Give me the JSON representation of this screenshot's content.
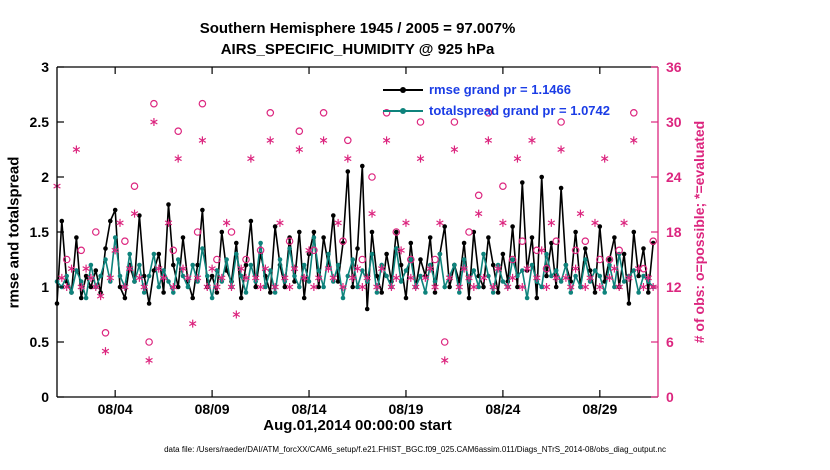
{
  "figure": {
    "title_line1": "Southern Hemisphere 1945 / 2005 = 97.007%",
    "title_line2": "AIRS_SPECIFIC_HUMIDITY @ 925 hPa",
    "xlabel": "Aug.01,2014 00:00:00 start",
    "ylabel_left": "rmse and totalspread",
    "ylabel_right": "# of obs: o=possible; *=evaluated",
    "footer": "data file: /Users/raeder/DAI/ATM_forcXX/CAM6_setup/f.e21.FHIST_BGC.f09_025.CAM6assim.011/Diags_NTrS_2014-08/obs_diag_output.nc",
    "legend": [
      {
        "label": "rmse grand pr = 1.1466",
        "color": "#000000"
      },
      {
        "label": "totalspread grand pr = 1.0742",
        "color": "#0e837c"
      }
    ]
  },
  "colors": {
    "rmse": "#000000",
    "totalspread": "#0e837c",
    "obs": "#dc267f",
    "legend_text": "#1b3de6",
    "axis": "#000000"
  },
  "chart_data": {
    "type": "line",
    "title": "Southern Hemisphere 1945 / 2005 = 97.007%",
    "subtitle": "AIRS_SPECIFIC_HUMIDITY @ 925 hPa",
    "xlabel": "Aug.01,2014 00:00:00 start",
    "ylabel": "rmse and totalspread",
    "y2label": "# of obs: o=possible; *=evaluated",
    "grid": false,
    "legend_position": "top-center-inside",
    "x_start_day": 1,
    "x_step_days": 0.25,
    "xlim": [
      1,
      32
    ],
    "ylim": [
      0,
      3
    ],
    "y2lim": [
      0,
      36
    ],
    "yticks": [
      0,
      0.5,
      1,
      1.5,
      2,
      2.5,
      3
    ],
    "ytick_labels": [
      "0",
      "0.5",
      "1",
      "1.5",
      "2",
      "2.5",
      "3"
    ],
    "y2ticks": [
      0,
      6,
      12,
      18,
      24,
      30,
      36
    ],
    "y2tick_labels": [
      "0",
      "6",
      "12",
      "18",
      "24",
      "30",
      "36"
    ],
    "xticks": {
      "days": [
        4,
        9,
        14,
        19,
        24,
        29
      ],
      "labels": [
        "08/04",
        "08/09",
        "08/14",
        "08/19",
        "08/24",
        "08/29"
      ]
    },
    "series": [
      {
        "name": "rmse",
        "axis": "left",
        "marker": "dot",
        "grand_pr": 1.1466,
        "values": [
          0.85,
          1.6,
          1.05,
          0.95,
          1.45,
          0.9,
          1.1,
          1.0,
          1.15,
          0.95,
          1.35,
          1.6,
          1.7,
          1.0,
          0.9,
          1.2,
          1.05,
          1.65,
          1.1,
          0.85,
          1.15,
          1.3,
          0.95,
          1.75,
          1.2,
          1.0,
          1.45,
          1.05,
          0.9,
          1.2,
          1.7,
          1.0,
          1.1,
          0.95,
          1.5,
          1.15,
          1.05,
          1.4,
          0.9,
          1.2,
          1.6,
          1.0,
          1.3,
          1.1,
          0.95,
          1.55,
          1.2,
          1.0,
          1.45,
          1.05,
          1.5,
          0.9,
          1.3,
          1.5,
          1.0,
          1.45,
          1.2,
          1.65,
          1.05,
          1.4,
          2.05,
          1.0,
          1.35,
          2.1,
          0.8,
          1.5,
          1.1,
          0.95,
          1.3,
          1.05,
          1.5,
          1.2,
          0.9,
          1.4,
          1.0,
          1.25,
          1.1,
          1.45,
          0.95,
          1.3,
          1.55,
          1.0,
          1.2,
          1.05,
          1.4,
          0.9,
          1.5,
          1.1,
          1.0,
          1.45,
          1.2,
          0.95,
          1.3,
          1.05,
          1.55,
          1.0,
          1.95,
          1.15,
          1.45,
          0.9,
          2.0,
          1.1,
          1.4,
          1.0,
          1.9,
          1.2,
          1.05,
          1.5,
          1.0,
          1.35,
          1.15,
          0.95,
          1.55,
          1.05,
          1.25,
          1.45,
          1.0,
          1.3,
          0.85,
          1.5,
          1.1,
          1.35,
          0.95,
          1.4
        ]
      },
      {
        "name": "totalspread",
        "axis": "left",
        "marker": "dot",
        "grand_pr": 1.0742,
        "values": [
          1.05,
          1.0,
          1.1,
          0.95,
          1.15,
          1.05,
          0.9,
          1.2,
          1.0,
          1.1,
          1.25,
          1.05,
          1.45,
          1.1,
          1.0,
          1.3,
          1.05,
          1.2,
          0.95,
          1.1,
          1.3,
          1.0,
          1.15,
          1.05,
          0.95,
          1.25,
          1.1,
          1.0,
          1.2,
          1.05,
          1.35,
          1.1,
          0.9,
          1.15,
          1.05,
          1.25,
          1.0,
          1.3,
          1.1,
          0.95,
          1.2,
          1.05,
          1.4,
          1.0,
          1.15,
          0.95,
          1.25,
          1.05,
          1.35,
          1.1,
          1.0,
          1.2,
          1.05,
          1.45,
          1.15,
          1.0,
          1.3,
          1.05,
          1.2,
          0.9,
          1.1,
          1.25,
          1.0,
          1.15,
          1.05,
          1.3,
          0.95,
          1.2,
          1.1,
          1.0,
          1.35,
          1.05,
          1.15,
          1.25,
          1.0,
          1.1,
          0.95,
          1.2,
          1.05,
          1.3,
          1.0,
          1.1,
          1.2,
          0.95,
          1.25,
          1.05,
          1.15,
          1.0,
          1.3,
          1.1,
          0.95,
          1.2,
          1.05,
          1.0,
          1.25,
          1.1,
          1.15,
          0.9,
          1.2,
          1.05,
          1.0,
          1.3,
          1.1,
          1.15,
          1.05,
          1.2,
          0.95,
          1.1,
          1.0,
          1.25,
          1.05,
          1.15,
          1.1,
          0.95,
          1.2,
          1.0,
          1.3,
          1.05,
          1.1,
          1.15,
          0.95,
          1.1,
          1.05,
          1.0
        ]
      },
      {
        "name": "obs_possible",
        "axis": "right",
        "marker": "o",
        "values": [
          23,
          13,
          15,
          14,
          27,
          16,
          14,
          13,
          18,
          11,
          7,
          13,
          16,
          19,
          17,
          14,
          23,
          13,
          12,
          6,
          32,
          14,
          13,
          19,
          16,
          29,
          14,
          13,
          8,
          18,
          32,
          12,
          14,
          15,
          13,
          19,
          18,
          9,
          14,
          15,
          26,
          13,
          16,
          14,
          31,
          12,
          19,
          13,
          17,
          14,
          29,
          13,
          16,
          16,
          13,
          31,
          14,
          13,
          19,
          17,
          28,
          13,
          14,
          15,
          13,
          24,
          12,
          14,
          31,
          12,
          18,
          16,
          19,
          15,
          12,
          30,
          13,
          14,
          15,
          19,
          6,
          13,
          30,
          12,
          14,
          18,
          12,
          22,
          13,
          31,
          12,
          14,
          23,
          12,
          15,
          26,
          17,
          14,
          28,
          16,
          16,
          14,
          19,
          17,
          30,
          13,
          12,
          16,
          20,
          17,
          13,
          19,
          15,
          26,
          15,
          14,
          16,
          19,
          13,
          31,
          14,
          14,
          13,
          17
        ]
      },
      {
        "name": "obs_evaluated",
        "axis": "right",
        "marker": "*",
        "values": [
          23,
          13,
          12,
          14,
          27,
          12,
          14,
          13,
          12,
          11,
          5,
          13,
          16,
          19,
          12,
          14,
          20,
          13,
          12,
          4,
          30,
          14,
          13,
          19,
          12,
          26,
          14,
          13,
          8,
          13,
          28,
          12,
          14,
          12,
          13,
          19,
          12,
          9,
          14,
          13,
          26,
          13,
          12,
          14,
          28,
          12,
          19,
          13,
          12,
          14,
          27,
          13,
          16,
          12,
          13,
          28,
          14,
          13,
          19,
          12,
          26,
          13,
          14,
          12,
          13,
          20,
          12,
          14,
          28,
          12,
          13,
          16,
          19,
          13,
          12,
          26,
          13,
          14,
          12,
          19,
          4,
          13,
          27,
          12,
          14,
          13,
          12,
          20,
          13,
          28,
          12,
          14,
          19,
          12,
          13,
          26,
          12,
          14,
          28,
          13,
          16,
          12,
          19,
          13,
          27,
          13,
          12,
          14,
          20,
          12,
          13,
          19,
          12,
          26,
          13,
          14,
          12,
          19,
          13,
          28,
          14,
          12,
          13,
          12
        ]
      }
    ]
  }
}
